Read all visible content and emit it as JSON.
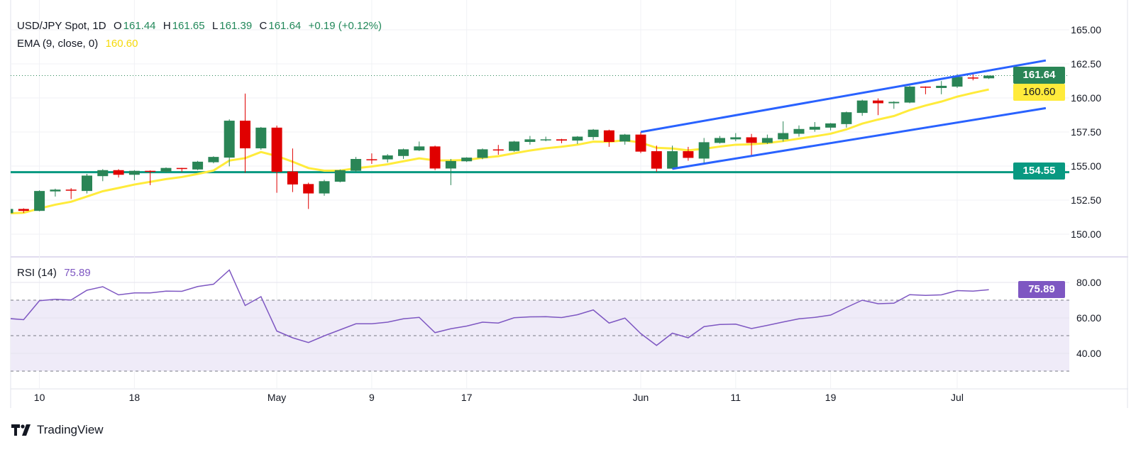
{
  "header": {
    "symbol": "USD/JPY Spot, 1D",
    "open_label": "O",
    "open": "161.44",
    "high_label": "H",
    "high": "161.65",
    "low_label": "L",
    "low": "161.39",
    "close_label": "C",
    "close": "161.64",
    "change": "+0.19 (+0.12%)",
    "ema_label": "EMA (9, close, 0)",
    "ema_value": "160.60",
    "rsi_label": "RSI (14)",
    "rsi_value": "75.89"
  },
  "price_tags": {
    "last": "161.64",
    "ema": "160.60",
    "support": "154.55",
    "rsi": "75.89"
  },
  "brand": {
    "name": "TradingView"
  },
  "colors": {
    "up": "#2a8556",
    "down": "#e00000",
    "ema": "#ffeb3b",
    "channel": "#2962ff",
    "support": "#089981",
    "rsi": "#7e57c2",
    "rsi_band": "#efebf8"
  },
  "chart_data": [
    {
      "type": "candlestick",
      "title": "USD/JPY Spot, 1D",
      "ylim": [
        148.6,
        166.3
      ],
      "yticks": [
        "165.00",
        "162.50",
        "160.00",
        "157.50",
        "155.00",
        "152.50",
        "150.00"
      ],
      "ytick_values": [
        165,
        162.5,
        160,
        157.5,
        155,
        152.5,
        150
      ],
      "xticks": [
        {
          "label": "10",
          "index": 2
        },
        {
          "label": "18",
          "index": 8
        },
        {
          "label": "May",
          "index": 17
        },
        {
          "label": "9",
          "index": 23
        },
        {
          "label": "17",
          "index": 29
        },
        {
          "label": "Jun",
          "index": 40
        },
        {
          "label": "11",
          "index": 46
        },
        {
          "label": "19",
          "index": 52
        },
        {
          "label": "Jul",
          "index": 60
        }
      ],
      "ohlc": [
        [
          151.54,
          151.88,
          151.5,
          151.85
        ],
        [
          151.85,
          151.9,
          151.56,
          151.71
        ],
        [
          151.71,
          153.22,
          151.68,
          153.17
        ],
        [
          153.14,
          153.34,
          152.76,
          153.27
        ],
        [
          153.27,
          153.38,
          152.58,
          153.24
        ],
        [
          153.17,
          154.43,
          152.99,
          154.3
        ],
        [
          154.26,
          154.77,
          153.89,
          154.7
        ],
        [
          154.7,
          154.77,
          154.16,
          154.36
        ],
        [
          154.36,
          154.7,
          153.96,
          154.65
        ],
        [
          154.65,
          154.68,
          153.6,
          154.62
        ],
        [
          154.57,
          154.9,
          154.5,
          154.86
        ],
        [
          154.86,
          154.87,
          154.57,
          154.81
        ],
        [
          154.75,
          155.38,
          154.7,
          155.32
        ],
        [
          155.28,
          155.72,
          155.2,
          155.67
        ],
        [
          155.62,
          158.43,
          154.98,
          158.33
        ],
        [
          158.33,
          160.32,
          154.52,
          156.3
        ],
        [
          156.3,
          157.87,
          156.2,
          157.82
        ],
        [
          157.82,
          157.97,
          153.04,
          154.57
        ],
        [
          154.6,
          156.29,
          153.09,
          153.65
        ],
        [
          153.68,
          153.78,
          151.85,
          152.99
        ],
        [
          152.99,
          153.99,
          152.82,
          153.89
        ],
        [
          153.85,
          154.75,
          153.8,
          154.7
        ],
        [
          154.65,
          155.67,
          154.55,
          155.52
        ],
        [
          155.5,
          155.93,
          155.16,
          155.48
        ],
        [
          155.49,
          155.88,
          155.26,
          155.78
        ],
        [
          155.74,
          156.28,
          155.53,
          156.23
        ],
        [
          156.15,
          156.8,
          156.1,
          156.44
        ],
        [
          156.44,
          156.5,
          154.7,
          154.82
        ],
        [
          154.82,
          155.52,
          153.6,
          155.37
        ],
        [
          155.35,
          155.65,
          155.3,
          155.62
        ],
        [
          155.6,
          156.29,
          155.5,
          156.23
        ],
        [
          156.22,
          156.55,
          155.83,
          156.18
        ],
        [
          156.11,
          156.85,
          156.05,
          156.8
        ],
        [
          156.77,
          157.21,
          156.57,
          156.96
        ],
        [
          156.93,
          157.16,
          156.82,
          156.96
        ],
        [
          156.96,
          157.0,
          156.67,
          156.87
        ],
        [
          156.87,
          157.2,
          156.62,
          157.16
        ],
        [
          157.13,
          157.72,
          156.92,
          157.67
        ],
        [
          157.62,
          157.67,
          156.41,
          156.77
        ],
        [
          156.8,
          157.36,
          156.57,
          157.31
        ],
        [
          157.31,
          157.5,
          155.95,
          156.06
        ],
        [
          156.09,
          156.5,
          154.58,
          154.81
        ],
        [
          154.81,
          156.5,
          154.78,
          156.09
        ],
        [
          156.09,
          156.41,
          155.39,
          155.6
        ],
        [
          155.55,
          157.06,
          155.14,
          156.75
        ],
        [
          156.7,
          157.21,
          156.65,
          157.06
        ],
        [
          156.96,
          157.42,
          156.82,
          157.11
        ],
        [
          157.11,
          157.36,
          155.75,
          156.7
        ],
        [
          156.7,
          157.31,
          156.62,
          157.06
        ],
        [
          156.96,
          158.28,
          156.8,
          157.42
        ],
        [
          157.37,
          157.98,
          157.16,
          157.72
        ],
        [
          157.67,
          158.23,
          157.52,
          157.88
        ],
        [
          157.82,
          158.16,
          157.62,
          158.13
        ],
        [
          158.08,
          159.0,
          157.82,
          158.95
        ],
        [
          158.9,
          159.87,
          158.69,
          159.81
        ],
        [
          159.81,
          159.97,
          158.74,
          159.61
        ],
        [
          159.61,
          159.76,
          159.2,
          159.71
        ],
        [
          159.66,
          160.89,
          159.61,
          160.83
        ],
        [
          160.83,
          160.85,
          160.27,
          160.8
        ],
        [
          160.73,
          161.24,
          160.27,
          160.89
        ],
        [
          160.83,
          161.75,
          160.73,
          161.55
        ],
        [
          161.5,
          161.75,
          161.29,
          161.46
        ],
        [
          161.44,
          161.65,
          161.39,
          161.64
        ]
      ],
      "ema": {
        "period": 9,
        "seed": 151.45,
        "last": 160.6
      },
      "last_price": 161.64,
      "support_level": 154.55,
      "channel": {
        "upper": {
          "start": [
            40,
            157.5
          ],
          "end": [
            65.6,
            162.75
          ]
        },
        "lower": {
          "start": [
            42,
            154.8
          ],
          "end": [
            65.6,
            159.25
          ]
        }
      }
    },
    {
      "type": "line",
      "title": "RSI (14)",
      "ylim": [
        25,
        90
      ],
      "yticks": [
        "80.00",
        "60.00",
        "40.00"
      ],
      "ytick_values": [
        80,
        60,
        40
      ],
      "bands": [
        70,
        50,
        30
      ],
      "values": [
        59.7,
        59.0,
        69.7,
        70.5,
        70.1,
        75.6,
        77.6,
        73.0,
        74.1,
        74.1,
        75.1,
        75.0,
        77.7,
        79.0,
        87.0,
        67.0,
        72.0,
        52.6,
        48.8,
        46.1,
        49.9,
        53.3,
        56.7,
        56.7,
        57.6,
        59.5,
        60.3,
        51.7,
        53.9,
        55.4,
        57.6,
        57.1,
        60.1,
        60.6,
        60.7,
        60.2,
        61.8,
        64.5,
        57.1,
        59.9,
        51.2,
        44.5,
        51.4,
        48.8,
        55.1,
        56.3,
        56.5,
        54.0,
        55.8,
        57.7,
        59.5,
        60.3,
        61.6,
        65.9,
        70.0,
        68.0,
        68.3,
        73.1,
        72.7,
        73.0,
        75.4,
        75.1,
        75.89
      ]
    }
  ]
}
